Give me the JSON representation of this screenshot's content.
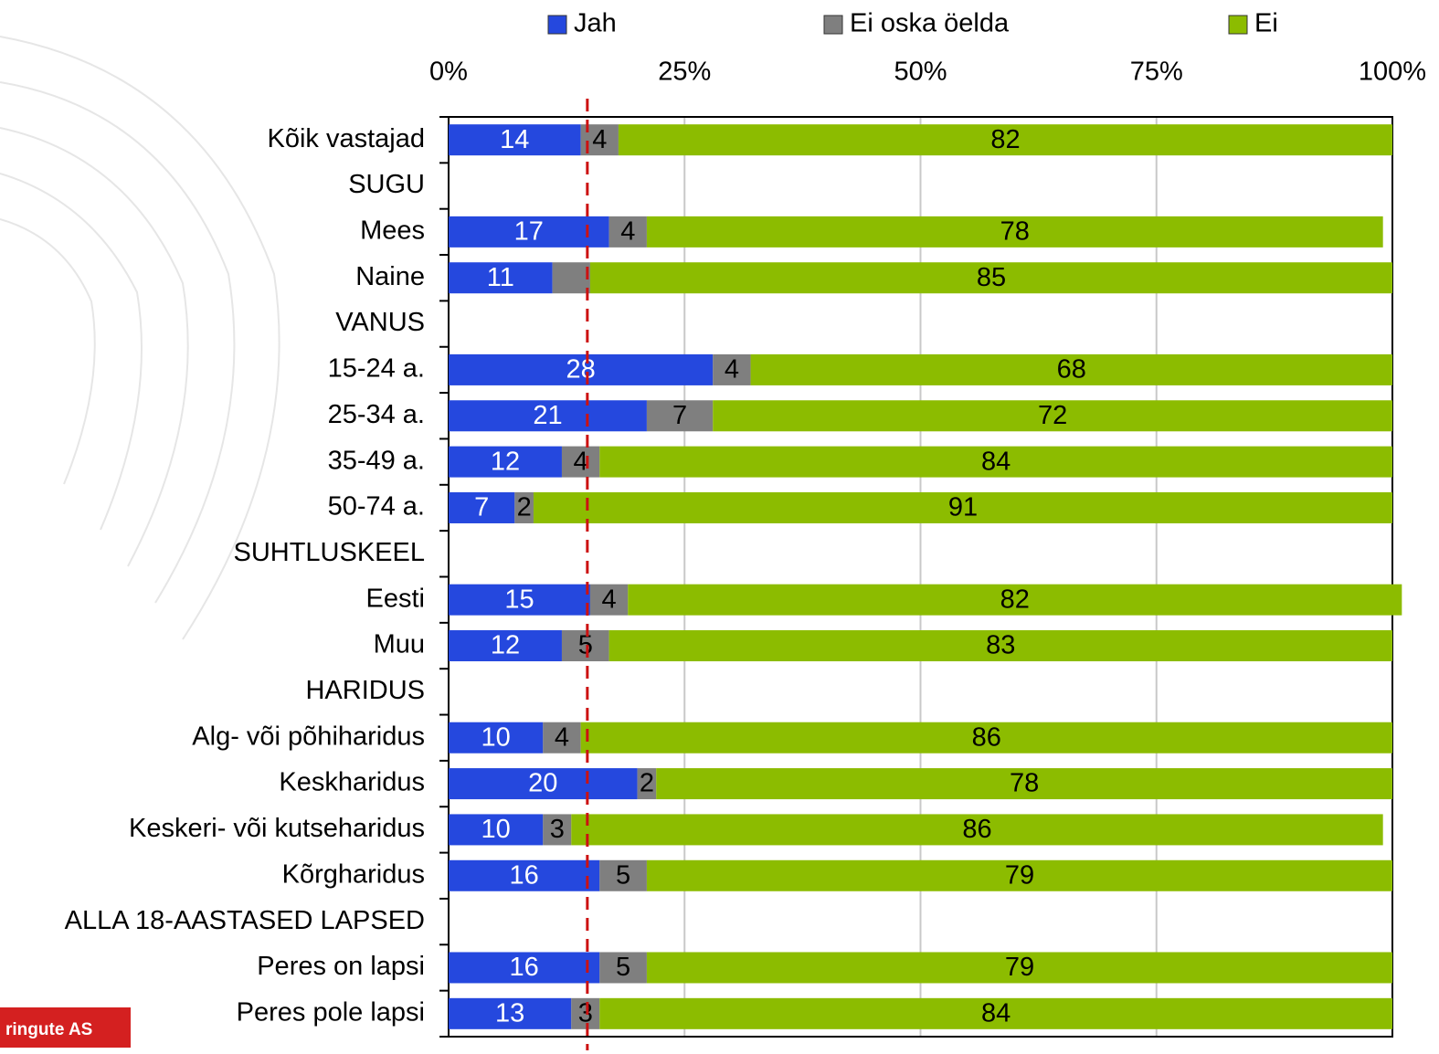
{
  "chart_data": {
    "type": "stacked_barh",
    "categories": [
      "Kõik vastajad",
      "SUGU",
      "Mees",
      "Naine",
      "VANUS",
      "15-24 a.",
      "25-34 a.",
      "35-49 a.",
      "50-74 a.",
      "SUHTLUSKEEL",
      "Eesti",
      "Muu",
      "HARIDUS",
      "Alg- või põhiharidus",
      "Keskharidus",
      "Keskeri- või kutseharidus",
      "Kõrgharidus",
      "ALLA 18-AASTASED LAPSED",
      "Peres on lapsi",
      "Peres pole lapsi"
    ],
    "series": [
      {
        "name": "Jah",
        "color": "#2548de",
        "label_color": "#ffffff",
        "values": [
          14,
          null,
          17,
          11,
          null,
          28,
          21,
          12,
          7,
          null,
          15,
          12,
          null,
          10,
          20,
          10,
          16,
          null,
          16,
          13
        ]
      },
      {
        "name": "Ei oska öelda",
        "color": "#7f7f7f",
        "label_color": "#000000",
        "values": [
          4,
          null,
          4,
          4,
          null,
          4,
          7,
          4,
          2,
          null,
          4,
          5,
          null,
          4,
          2,
          3,
          5,
          null,
          5,
          3
        ],
        "value_labels": [
          "4",
          null,
          "4",
          null,
          null,
          "4",
          "7",
          "4",
          "2",
          null,
          "4",
          "5",
          null,
          "4",
          "2",
          "3",
          "5",
          null,
          "5",
          "3"
        ]
      },
      {
        "name": "Ei",
        "color": "#8cbc00",
        "label_color": "#000000",
        "values": [
          82,
          null,
          78,
          85,
          null,
          68,
          72,
          84,
          91,
          null,
          82,
          83,
          null,
          86,
          78,
          86,
          79,
          null,
          79,
          84
        ]
      }
    ],
    "xlim": [
      0,
      100
    ],
    "xticks": [
      {
        "value": 0,
        "label": "0%"
      },
      {
        "value": 25,
        "label": "25%"
      },
      {
        "value": 50,
        "label": "50%"
      },
      {
        "value": 75,
        "label": "75%"
      },
      {
        "value": 100,
        "label": "100%"
      }
    ],
    "grid": true,
    "reference_line": {
      "value": 14.7,
      "color": "#cc1111"
    },
    "legend": "top",
    "logo": "ringute AS"
  }
}
